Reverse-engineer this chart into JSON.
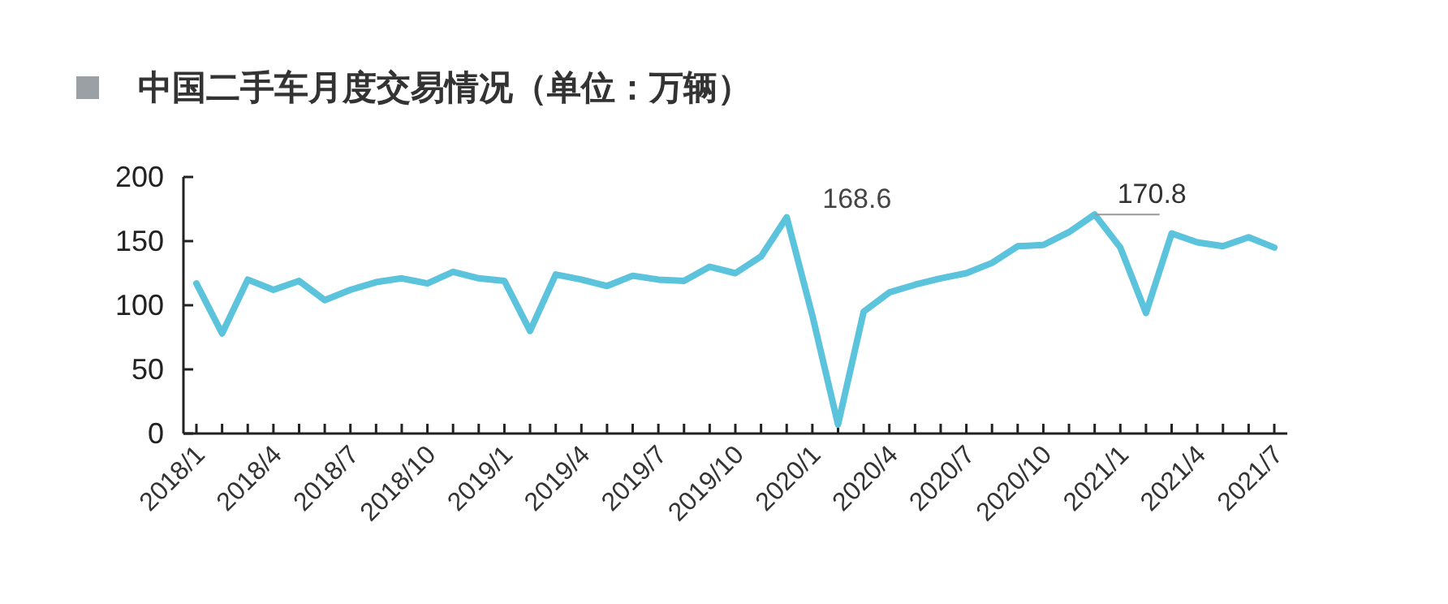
{
  "chart_data": {
    "type": "line",
    "title": "中国二手车月度交易情况（单位：万辆）",
    "categories": [
      "2018/1",
      null,
      null,
      "2018/4",
      null,
      null,
      "2018/7",
      null,
      null,
      "2018/10",
      null,
      null,
      "2019/1",
      null,
      null,
      "2019/4",
      null,
      null,
      "2019/7",
      null,
      null,
      "2019/10",
      null,
      null,
      "2020/1",
      null,
      null,
      "2020/4",
      null,
      null,
      "2020/7",
      null,
      null,
      "2020/10",
      null,
      null,
      "2021/1",
      null,
      null,
      "2021/4",
      null,
      null,
      "2021/7"
    ],
    "series": [
      {
        "color": "#5bc3dc",
        "values": [
          117,
          78,
          120,
          112,
          119,
          104,
          112,
          118,
          121,
          117,
          126,
          121,
          119,
          80,
          124,
          120,
          115,
          123,
          120,
          119,
          130,
          125,
          138,
          168.6,
          92,
          7,
          95,
          110,
          116,
          121,
          125,
          133,
          146,
          147,
          157,
          170.8,
          145,
          94,
          156,
          149,
          146,
          153,
          145
        ],
        "value_labels": [
          null,
          null,
          null,
          null,
          null,
          null,
          null,
          null,
          null,
          null,
          null,
          null,
          null,
          null,
          null,
          null,
          null,
          null,
          null,
          null,
          null,
          null,
          null,
          "168.6",
          null,
          null,
          null,
          null,
          null,
          null,
          null,
          null,
          null,
          null,
          null,
          "170.8",
          null,
          null,
          null,
          null,
          null,
          null,
          null
        ]
      }
    ],
    "ylim": [
      0,
      200
    ],
    "yticks": [
      0,
      50,
      100,
      150,
      200
    ],
    "grid": false,
    "marker": "none",
    "line_style": "solid"
  }
}
